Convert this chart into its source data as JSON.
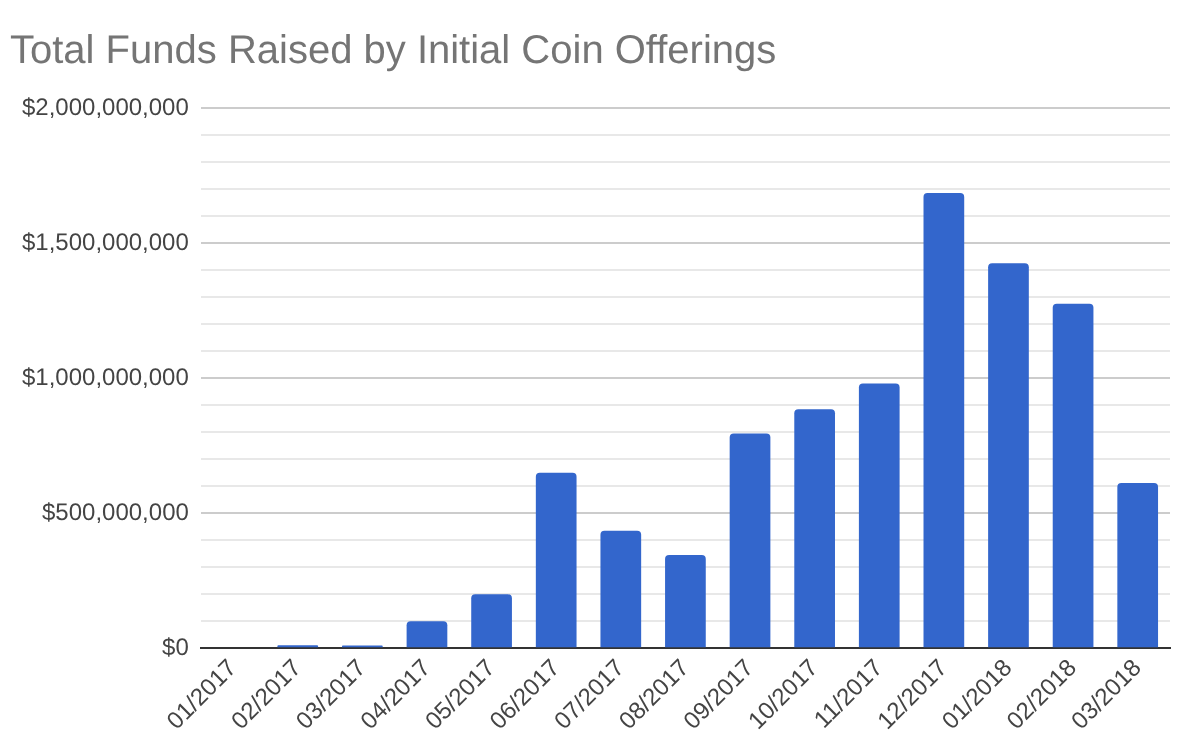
{
  "chart_data": {
    "type": "bar",
    "title": "Total Funds Raised by Initial Coin Offerings",
    "categories": [
      "01/2017",
      "02/2017",
      "03/2017",
      "04/2017",
      "05/2017",
      "06/2017",
      "07/2017",
      "08/2017",
      "09/2017",
      "10/2017",
      "11/2017",
      "12/2017",
      "01/2018",
      "02/2018",
      "03/2018"
    ],
    "values": [
      0,
      11000000,
      10000000,
      100000000,
      200000000,
      650000000,
      435000000,
      345000000,
      795000000,
      885000000,
      980000000,
      1685000000,
      1425000000,
      1275000000,
      612000000
    ],
    "color": "#3366cc",
    "ylim": [
      0,
      2000000000
    ],
    "yticks": [
      {
        "value": 0,
        "label": "$0"
      },
      {
        "value": 100000000,
        "label": null
      },
      {
        "value": 200000000,
        "label": null
      },
      {
        "value": 300000000,
        "label": null
      },
      {
        "value": 400000000,
        "label": null
      },
      {
        "value": 500000000,
        "label": "$500,000,000"
      },
      {
        "value": 600000000,
        "label": null
      },
      {
        "value": 700000000,
        "label": null
      },
      {
        "value": 800000000,
        "label": null
      },
      {
        "value": 900000000,
        "label": null
      },
      {
        "value": 1000000000,
        "label": "$1,000,000,000"
      },
      {
        "value": 1100000000,
        "label": null
      },
      {
        "value": 1200000000,
        "label": null
      },
      {
        "value": 1300000000,
        "label": null
      },
      {
        "value": 1400000000,
        "label": null
      },
      {
        "value": 1500000000,
        "label": "$1,500,000,000"
      },
      {
        "value": 1600000000,
        "label": null
      },
      {
        "value": 1700000000,
        "label": null
      },
      {
        "value": 1800000000,
        "label": null
      },
      {
        "value": 1900000000,
        "label": null
      },
      {
        "value": 2000000000,
        "label": "$2,000,000,000"
      }
    ],
    "grid": "y",
    "legend": false
  }
}
